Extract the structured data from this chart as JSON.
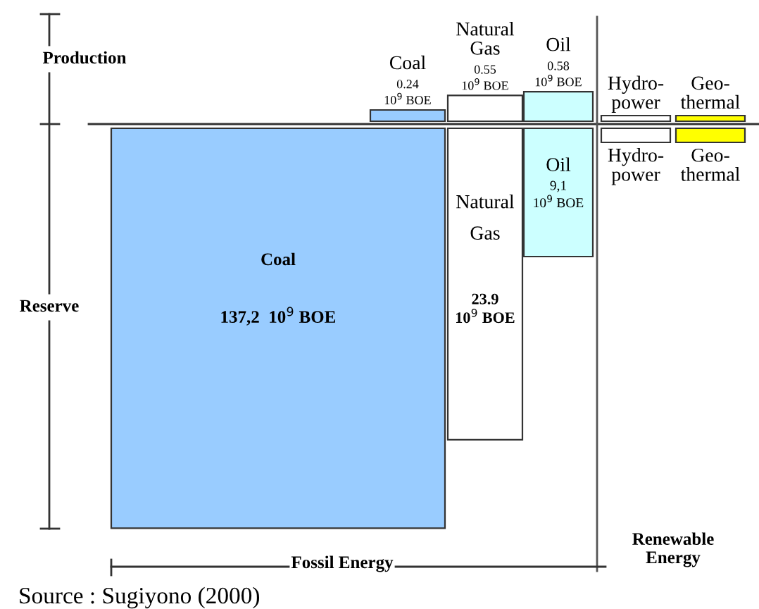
{
  "chart_data": {
    "type": "other",
    "categories": [
      "Coal",
      "Natural\nGas",
      "Oil",
      "Hydro-\npower",
      "Geo-\nthermal"
    ],
    "series": [
      {
        "name": "Production",
        "colors": [
          "#99ccff",
          "#ffffff",
          "#ccffff",
          "#ffffff",
          "#ffff00"
        ],
        "values": [
          0.24,
          0.55,
          0.58,
          null,
          null
        ],
        "value_labels": [
          "0.24\n10$^{9}$ BOE",
          "0.55\n10$^{9}$ BOE",
          "0.58\n10$^{9}$ BOE",
          null,
          null
        ]
      },
      {
        "name": "Reserve",
        "colors": [
          "#99ccff",
          "#ffffff",
          "#ccffff",
          "#ffffff",
          "#ffff00"
        ],
        "values": [
          137.2,
          23.9,
          9.1,
          null,
          null
        ],
        "value_labels": [
          "137,2  10$^{9}$ BOE",
          "23.9\n10$^{9}$ BOE",
          "9,1\n10$^{9}$ BOE",
          null,
          null
        ]
      }
    ],
    "annotations": [
      "Fossil Energy",
      "Renewable\nEnergy",
      "Source : Sugiyono (2000)"
    ]
  }
}
